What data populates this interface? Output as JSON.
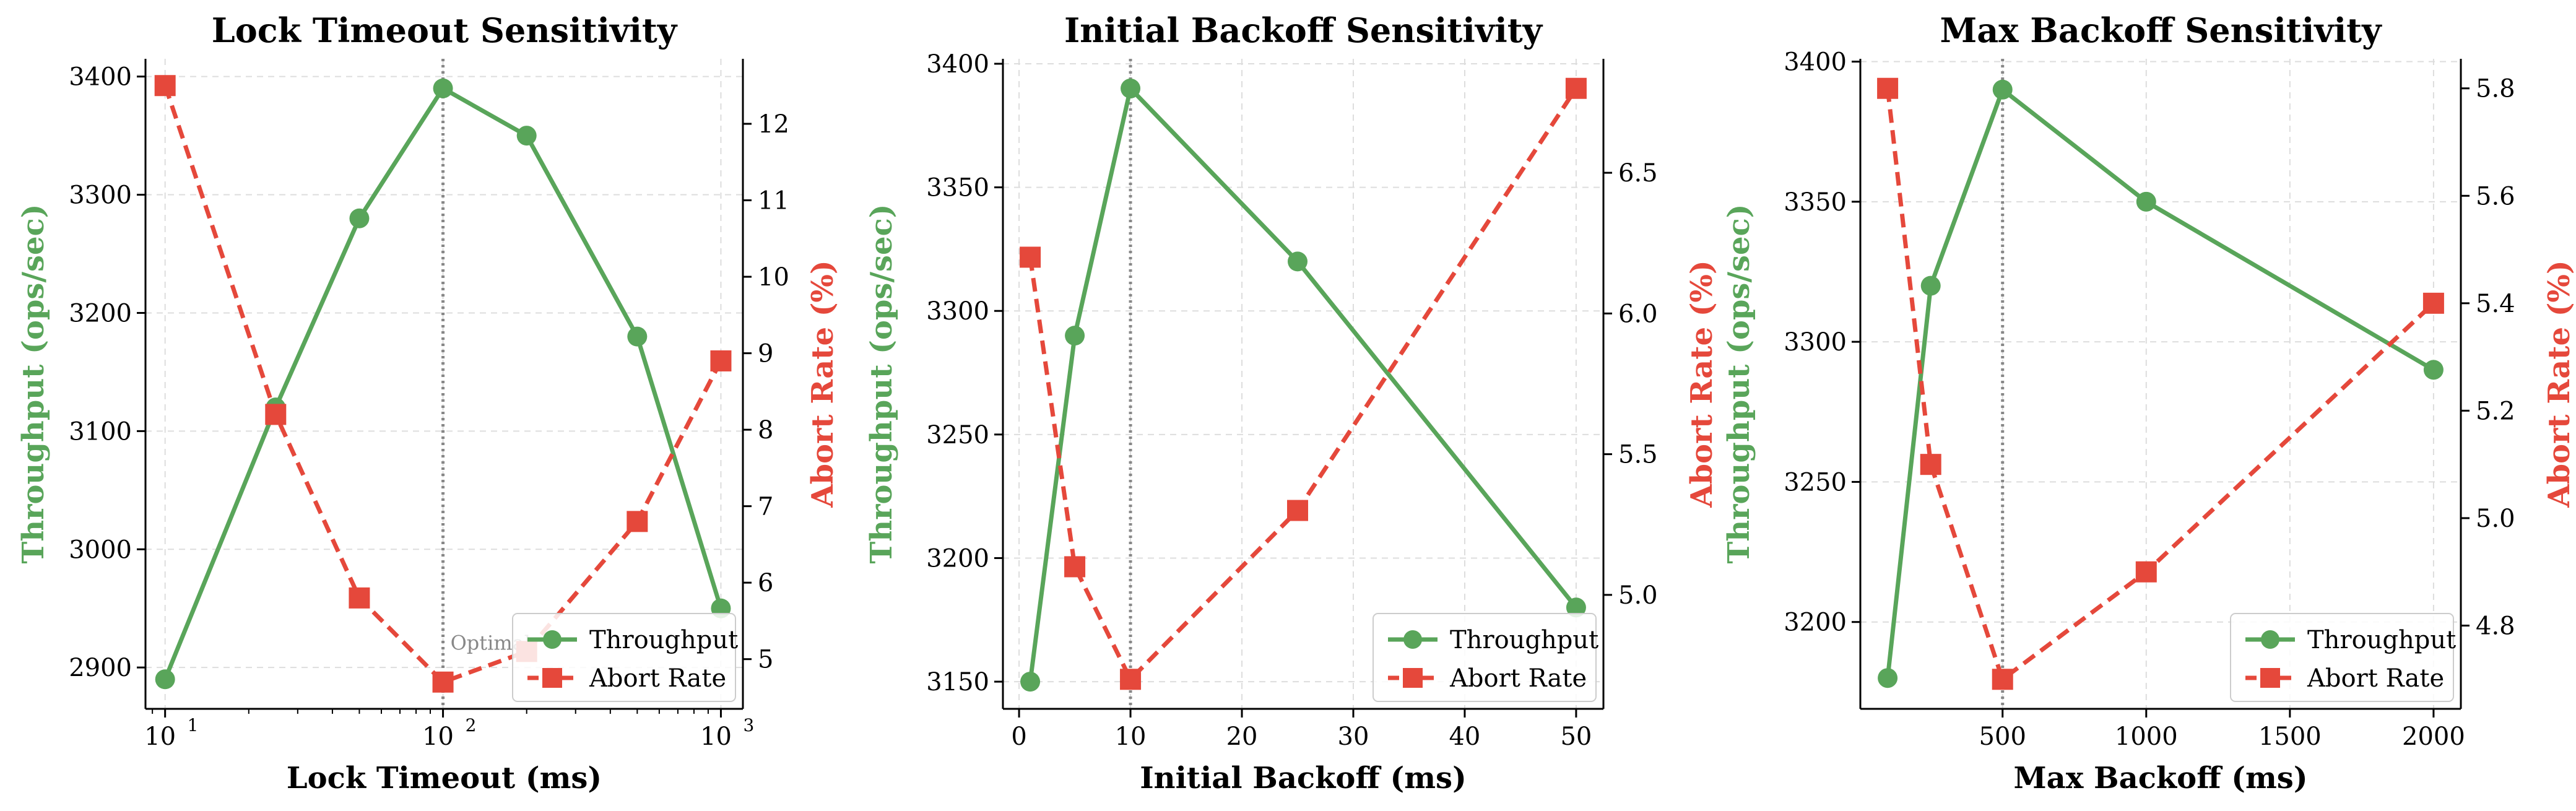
{
  "colors": {
    "throughput": "#59a55a",
    "abort": "#e5483b",
    "optimal_line": "#888888",
    "grid": "#dddddd"
  },
  "chart_data": [
    {
      "type": "line",
      "title": "Lock Timeout Sensitivity",
      "xlabel": "Lock Timeout (ms)",
      "ylabel_left": "Throughput (ops/sec)",
      "ylabel_right": "Abort Rate (%)",
      "x_scale": "log",
      "xlim": [
        8.5,
        1200
      ],
      "x_ticks": [
        {
          "value": 10,
          "base": "10",
          "exp": "1"
        },
        {
          "value": 100,
          "base": "10",
          "exp": "2"
        },
        {
          "value": 1000,
          "base": "10",
          "exp": "3"
        }
      ],
      "ylim_left": [
        2865,
        3415
      ],
      "yticks_left": [
        2900,
        3000,
        3100,
        3200,
        3300,
        3400
      ],
      "ylim_right": [
        4.35,
        12.85
      ],
      "yticks_right": [
        5,
        6,
        7,
        8,
        9,
        10,
        11,
        12
      ],
      "optimal_x": 100,
      "optimal_label": "Optimal",
      "x": [
        10,
        25,
        50,
        100,
        200,
        500,
        1000
      ],
      "series": [
        {
          "name": "Throughput",
          "axis": "left",
          "style": "solid",
          "marker": "circle",
          "values": [
            2890,
            3120,
            3280,
            3390,
            3350,
            3180,
            2950
          ]
        },
        {
          "name": "Abort Rate",
          "axis": "right",
          "style": "dashed",
          "marker": "square",
          "values": [
            12.5,
            8.2,
            5.8,
            4.7,
            5.1,
            6.8,
            8.9
          ]
        }
      ],
      "legend": "bottom-right"
    },
    {
      "type": "line",
      "title": "Initial Backoff Sensitivity",
      "xlabel": "Initial Backoff (ms)",
      "ylabel_left": "Throughput (ops/sec)",
      "ylabel_right": "Abort Rate (%)",
      "x_scale": "linear",
      "xlim": [
        -1.45,
        52.45
      ],
      "x_ticks": [
        {
          "value": 0,
          "label": "0"
        },
        {
          "value": 10,
          "label": "10"
        },
        {
          "value": 20,
          "label": "20"
        },
        {
          "value": 30,
          "label": "30"
        },
        {
          "value": 40,
          "label": "40"
        },
        {
          "value": 50,
          "label": "50"
        }
      ],
      "ylim_left": [
        3139,
        3402
      ],
      "yticks_left": [
        3150,
        3200,
        3250,
        3300,
        3350,
        3400
      ],
      "ylim_right": [
        4.595,
        6.905
      ],
      "yticks_right": [
        5.0,
        5.5,
        6.0,
        6.5
      ],
      "yticks_right_format": "1dp",
      "optimal_x": 10,
      "optimal_label": "",
      "x": [
        1,
        5,
        10,
        25,
        50
      ],
      "series": [
        {
          "name": "Throughput",
          "axis": "left",
          "style": "solid",
          "marker": "circle",
          "values": [
            3150,
            3290,
            3390,
            3320,
            3180
          ]
        },
        {
          "name": "Abort Rate",
          "axis": "right",
          "style": "dashed",
          "marker": "square",
          "values": [
            6.2,
            5.1,
            4.7,
            5.3,
            6.8
          ]
        }
      ],
      "legend": "bottom-right"
    },
    {
      "type": "line",
      "title": "Max Backoff Sensitivity",
      "xlabel": "Max Backoff (ms)",
      "ylabel_left": "Throughput (ops/sec)",
      "ylabel_right": "Abort Rate (%)",
      "x_scale": "linear",
      "xlim": [
        5,
        2095
      ],
      "x_ticks": [
        {
          "value": 500,
          "label": "500"
        },
        {
          "value": 1000,
          "label": "1000"
        },
        {
          "value": 1500,
          "label": "1500"
        },
        {
          "value": 2000,
          "label": "2000"
        }
      ],
      "ylim_left": [
        3169,
        3401
      ],
      "yticks_left": [
        3200,
        3250,
        3300,
        3350,
        3400
      ],
      "ylim_right": [
        4.645,
        5.855
      ],
      "yticks_right": [
        4.8,
        5.0,
        5.2,
        5.4,
        5.6,
        5.8
      ],
      "yticks_right_format": "1dp",
      "optimal_x": 500,
      "optimal_label": "",
      "x": [
        100,
        250,
        500,
        1000,
        2000
      ],
      "series": [
        {
          "name": "Throughput",
          "axis": "left",
          "style": "solid",
          "marker": "circle",
          "values": [
            3180,
            3320,
            3390,
            3350,
            3290
          ]
        },
        {
          "name": "Abort Rate",
          "axis": "right",
          "style": "dashed",
          "marker": "square",
          "values": [
            5.8,
            5.1,
            4.7,
            4.9,
            5.4
          ]
        }
      ],
      "legend": "bottom-right"
    }
  ]
}
